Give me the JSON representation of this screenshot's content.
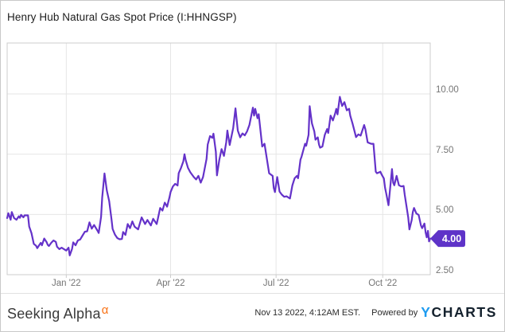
{
  "header": {
    "title": "Henry Hub Natural Gas Spot Price (I:HHNGSP)"
  },
  "badge": {
    "last_price_label": "4.00"
  },
  "footer": {
    "brand": "Seeking Alpha",
    "brand_alpha_glyph": "α",
    "timestamp": "Nov 13 2022, 4:12AM EST.",
    "powered_by": "Powered by",
    "logo_y": "Y",
    "logo_charts": "CHARTS"
  },
  "colors": {
    "line": "#6432c9",
    "badge": "#5e33c8",
    "grid": "#e6e6e6",
    "frame": "#cccccc",
    "axis_text": "#757575",
    "ycharts_blue": "#1d9bf0",
    "ycharts_dark": "#14212d",
    "alpha_orange": "#f97316"
  },
  "chart_data": {
    "type": "line",
    "title": "Henry Hub Natural Gas Spot Price (I:HHNGSP)",
    "x_domain_dates": [
      "2021-11-11",
      "2022-11-11"
    ],
    "x_unit": "days since 2021-11-11",
    "ylim_ticks": [
      2.5,
      10.0
    ],
    "grid": true,
    "legend_position": "none",
    "last_value": 4.0,
    "y_ticks": [
      {
        "label": "10.00",
        "value": 10.0
      },
      {
        "label": "7.50",
        "value": 7.5
      },
      {
        "label": "5.00",
        "value": 5.0
      },
      {
        "label": "2.50",
        "value": 2.5
      }
    ],
    "x_ticks": [
      {
        "label": "Jan '22",
        "day": 51
      },
      {
        "label": "Apr '22",
        "day": 141
      },
      {
        "label": "Jul '22",
        "day": 232
      },
      {
        "label": "Oct '22",
        "day": 324
      }
    ],
    "series": [
      {
        "name": "Henry Hub Natural Gas Spot Price",
        "points": [
          [
            0,
            4.85
          ],
          [
            1,
            5.05
          ],
          [
            3,
            4.78
          ],
          [
            4,
            5.1
          ],
          [
            6,
            4.85
          ],
          [
            8,
            4.78
          ],
          [
            10,
            4.92
          ],
          [
            11,
            4.86
          ],
          [
            12,
            4.98
          ],
          [
            14,
            4.88
          ],
          [
            15,
            4.96
          ],
          [
            18,
            4.96
          ],
          [
            19,
            4.5
          ],
          [
            21,
            4.22
          ],
          [
            23,
            3.78
          ],
          [
            25,
            3.7
          ],
          [
            26,
            3.6
          ],
          [
            27,
            3.68
          ],
          [
            29,
            3.82
          ],
          [
            30,
            3.72
          ],
          [
            32,
            4.0
          ],
          [
            34,
            3.85
          ],
          [
            35,
            3.74
          ],
          [
            36,
            3.69
          ],
          [
            38,
            3.82
          ],
          [
            40,
            3.92
          ],
          [
            42,
            3.86
          ],
          [
            43,
            3.66
          ],
          [
            45,
            3.56
          ],
          [
            47,
            3.62
          ],
          [
            49,
            3.56
          ],
          [
            51,
            3.5
          ],
          [
            53,
            3.62
          ],
          [
            54,
            3.3
          ],
          [
            56,
            3.57
          ],
          [
            57,
            3.84
          ],
          [
            59,
            3.72
          ],
          [
            61,
            3.92
          ],
          [
            63,
            3.96
          ],
          [
            65,
            4.12
          ],
          [
            67,
            4.28
          ],
          [
            69,
            4.3
          ],
          [
            71,
            4.67
          ],
          [
            73,
            4.41
          ],
          [
            75,
            4.56
          ],
          [
            78,
            4.32
          ],
          [
            79,
            4.23
          ],
          [
            81,
            4.9
          ],
          [
            82,
            5.7
          ],
          [
            84,
            6.7
          ],
          [
            86,
            6.0
          ],
          [
            88,
            5.55
          ],
          [
            90,
            4.8
          ],
          [
            91,
            4.4
          ],
          [
            93,
            4.16
          ],
          [
            95,
            4.02
          ],
          [
            97,
            3.97
          ],
          [
            99,
            3.98
          ],
          [
            100,
            4.27
          ],
          [
            102,
            4.15
          ],
          [
            104,
            4.6
          ],
          [
            106,
            4.43
          ],
          [
            108,
            4.71
          ],
          [
            110,
            4.49
          ],
          [
            113,
            4.38
          ],
          [
            116,
            4.88
          ],
          [
            119,
            4.6
          ],
          [
            121,
            4.77
          ],
          [
            124,
            4.54
          ],
          [
            126,
            4.82
          ],
          [
            129,
            4.6
          ],
          [
            130,
            4.82
          ],
          [
            132,
            5.27
          ],
          [
            134,
            5.16
          ],
          [
            136,
            5.49
          ],
          [
            138,
            5.32
          ],
          [
            140,
            5.71
          ],
          [
            141,
            5.93
          ],
          [
            143,
            6.16
          ],
          [
            145,
            6.27
          ],
          [
            147,
            6.2
          ],
          [
            148,
            6.71
          ],
          [
            150,
            6.93
          ],
          [
            152,
            7.2
          ],
          [
            153,
            7.5
          ],
          [
            154,
            7.25
          ],
          [
            156,
            6.93
          ],
          [
            158,
            6.75
          ],
          [
            161,
            6.55
          ],
          [
            163,
            6.45
          ],
          [
            165,
            6.6
          ],
          [
            167,
            6.32
          ],
          [
            169,
            6.55
          ],
          [
            172,
            7.3
          ],
          [
            173,
            7.9
          ],
          [
            175,
            8.25
          ],
          [
            177,
            8.18
          ],
          [
            178,
            8.35
          ],
          [
            180,
            7.6
          ],
          [
            181,
            6.62
          ],
          [
            183,
            7.25
          ],
          [
            185,
            7.71
          ],
          [
            187,
            7.43
          ],
          [
            189,
            8.0
          ],
          [
            190,
            8.48
          ],
          [
            192,
            7.88
          ],
          [
            195,
            8.58
          ],
          [
            197,
            9.4
          ],
          [
            199,
            8.48
          ],
          [
            201,
            8.2
          ],
          [
            203,
            8.36
          ],
          [
            205,
            8.28
          ],
          [
            207,
            8.45
          ],
          [
            209,
            8.71
          ],
          [
            212,
            9.43
          ],
          [
            213,
            9.1
          ],
          [
            214,
            9.38
          ],
          [
            216,
            8.99
          ],
          [
            217,
            9.16
          ],
          [
            220,
            7.82
          ],
          [
            222,
            7.93
          ],
          [
            224,
            7.32
          ],
          [
            226,
            6.71
          ],
          [
            229,
            6.6
          ],
          [
            230,
            6.1
          ],
          [
            231,
            5.93
          ],
          [
            233,
            6.55
          ],
          [
            235,
            5.95
          ],
          [
            237,
            5.82
          ],
          [
            239,
            5.73
          ],
          [
            241,
            5.75
          ],
          [
            244,
            5.66
          ],
          [
            246,
            6.2
          ],
          [
            247,
            6.35
          ],
          [
            248,
            6.5
          ],
          [
            250,
            6.6
          ],
          [
            251,
            6.5
          ],
          [
            253,
            7.27
          ],
          [
            254,
            7.4
          ],
          [
            257,
            7.93
          ],
          [
            258,
            7.85
          ],
          [
            260,
            8.3
          ],
          [
            261,
            9.49
          ],
          [
            262,
            9.1
          ],
          [
            263,
            8.77
          ],
          [
            265,
            8.45
          ],
          [
            266,
            8.1
          ],
          [
            268,
            8.2
          ],
          [
            269,
            7.9
          ],
          [
            270,
            7.77
          ],
          [
            272,
            7.82
          ],
          [
            274,
            8.3
          ],
          [
            276,
            8.54
          ],
          [
            277,
            8.38
          ],
          [
            279,
            9.1
          ],
          [
            281,
            8.9
          ],
          [
            283,
            9.2
          ],
          [
            284,
            9.38
          ],
          [
            285,
            9.15
          ],
          [
            287,
            9.88
          ],
          [
            289,
            9.5
          ],
          [
            291,
            9.66
          ],
          [
            293,
            9.32
          ],
          [
            295,
            9.38
          ],
          [
            296,
            9.1
          ],
          [
            298,
            8.77
          ],
          [
            301,
            8.21
          ],
          [
            303,
            8.32
          ],
          [
            305,
            8.27
          ],
          [
            308,
            8.71
          ],
          [
            309,
            8.54
          ],
          [
            311,
            7.99
          ],
          [
            314,
            7.93
          ],
          [
            316,
            7.93
          ],
          [
            318,
            6.77
          ],
          [
            319,
            6.71
          ],
          [
            322,
            6.77
          ],
          [
            323,
            6.66
          ],
          [
            325,
            6.49
          ],
          [
            326,
            6.1
          ],
          [
            327,
            5.88
          ],
          [
            329,
            5.38
          ],
          [
            332,
            6.88
          ],
          [
            333,
            6.32
          ],
          [
            334,
            6.21
          ],
          [
            336,
            6.6
          ],
          [
            338,
            6.21
          ],
          [
            340,
            6.16
          ],
          [
            342,
            6.18
          ],
          [
            343,
            5.82
          ],
          [
            346,
            4.88
          ],
          [
            347,
            4.38
          ],
          [
            349,
            4.77
          ],
          [
            350,
            5.1
          ],
          [
            351,
            5.27
          ],
          [
            353,
            5.04
          ],
          [
            355,
            4.98
          ],
          [
            357,
            4.54
          ],
          [
            358,
            4.43
          ],
          [
            360,
            4.62
          ],
          [
            361,
            4.25
          ],
          [
            362,
            4.05
          ],
          [
            363,
            4.32
          ],
          [
            364,
            3.88
          ],
          [
            365,
            4.0
          ]
        ]
      }
    ]
  }
}
